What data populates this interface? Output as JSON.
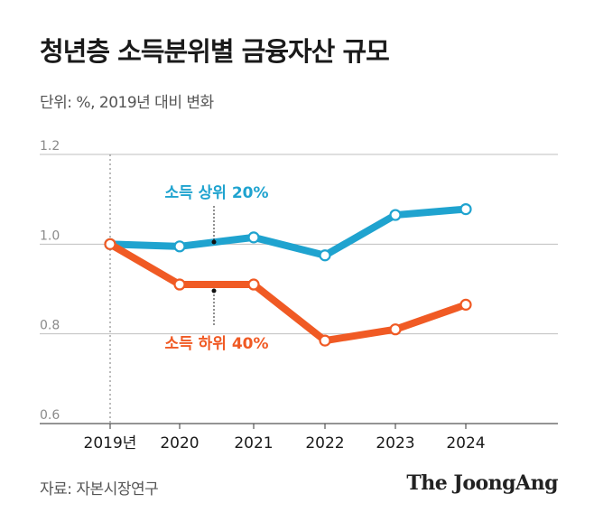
{
  "title": "청년층 소득분위별 금융자산 규모",
  "unit_label": "단위: %, 2019년 대비 변화",
  "source": "자료: 자본시장연구",
  "brand": "The JoongAng",
  "colors": {
    "top20": "#1fa3cf",
    "bottom40": "#f05a24",
    "grid": "#bfbfbf",
    "axis": "#555555"
  },
  "chart_data": {
    "type": "line",
    "categories": [
      "2019년",
      "2020",
      "2021",
      "2022",
      "2023",
      "2024"
    ],
    "series": [
      {
        "name": "소득 상위 20%",
        "color": "#1fa3cf",
        "values": [
          1.0,
          0.995,
          1.015,
          0.975,
          1.065,
          1.078
        ]
      },
      {
        "name": "소득 하위 40%",
        "color": "#f05a24",
        "values": [
          1.0,
          0.91,
          0.91,
          0.785,
          0.81,
          0.865
        ]
      }
    ],
    "yticks": [
      "0.6",
      "0.8",
      "1.0",
      "1.2"
    ],
    "ylim": [
      0.6,
      1.2
    ],
    "grid": true,
    "baseline_marker": "2019년"
  }
}
